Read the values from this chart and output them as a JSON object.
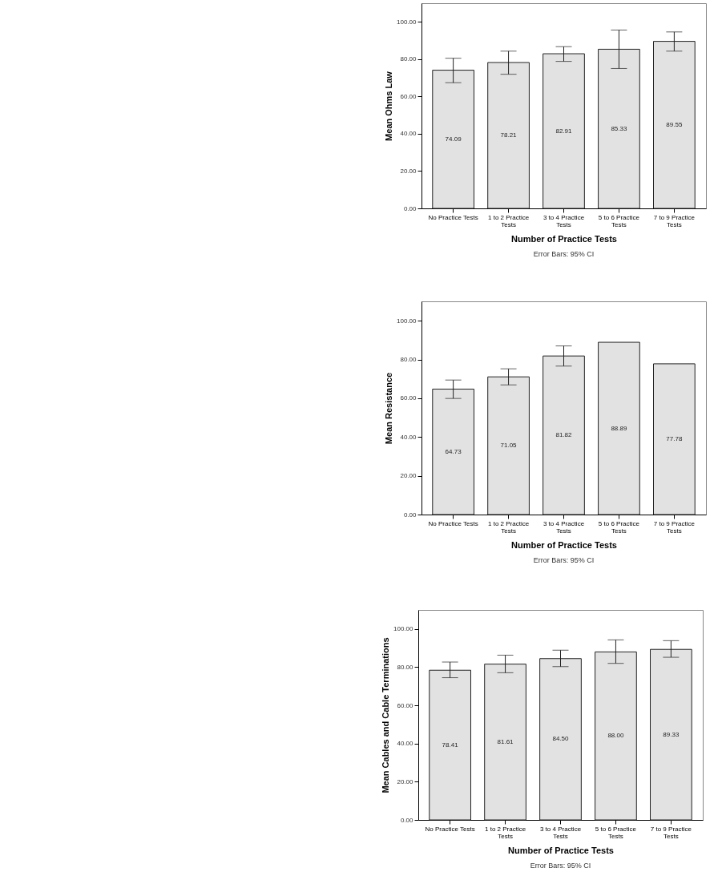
{
  "chart_data": [
    {
      "type": "bar",
      "xlabel": "Number of Practice Tests",
      "ylabel": "Mean Ohms Law",
      "annotations": [
        "Error Bars: 95% CI"
      ],
      "categories": [
        "No Practice Tests",
        "1 to 2 Practice Tests",
        "3 to 4 Practice Tests",
        "5 to 6 Practice Tests",
        "7 to 9 Practice Tests"
      ],
      "series": [
        {
          "color": "#e2e2e2",
          "values": [
            74.09,
            78.21,
            82.91,
            85.33,
            89.55
          ],
          "value_labels": [
            "74.09",
            "78.21",
            "82.91",
            "85.33",
            "89.55"
          ],
          "errors": [
            [
              67.4,
              80.5
            ],
            [
              71.9,
              84.3
            ],
            [
              78.8,
              86.7
            ],
            [
              75.0,
              95.6
            ],
            [
              84.3,
              94.6
            ]
          ]
        }
      ],
      "ylim": [
        0,
        110
      ],
      "yticks": [
        {
          "value": 0,
          "label": "0.00"
        },
        {
          "value": 20,
          "label": "20.00"
        },
        {
          "value": 40,
          "label": "40.00"
        },
        {
          "value": 60,
          "label": "60.00"
        },
        {
          "value": 80,
          "label": "80.00"
        },
        {
          "value": 100,
          "label": "100.00"
        }
      ]
    },
    {
      "type": "bar",
      "xlabel": "Number of Practice Tests",
      "ylabel": "Mean Resistance",
      "annotations": [
        "Error Bars: 95% CI"
      ],
      "categories": [
        "No Practice Tests",
        "1 to 2 Practice Tests",
        "3 to 4 Practice Tests",
        "5 to 6 Practice Tests",
        "7 to 9 Practice Tests"
      ],
      "series": [
        {
          "color": "#e2e2e2",
          "values": [
            64.73,
            71.05,
            81.82,
            88.89,
            77.78
          ],
          "value_labels": [
            "64.73",
            "71.05",
            "81.82",
            "88.89",
            "77.78"
          ],
          "errors": [
            [
              59.9,
              69.4
            ],
            [
              66.9,
              75.2
            ],
            [
              76.6,
              87.0
            ],
            null,
            null
          ]
        }
      ],
      "ylim": [
        0,
        110
      ],
      "yticks": [
        {
          "value": 0,
          "label": "0.00"
        },
        {
          "value": 20,
          "label": "20.00"
        },
        {
          "value": 40,
          "label": "40.00"
        },
        {
          "value": 60,
          "label": "60.00"
        },
        {
          "value": 80,
          "label": "80.00"
        },
        {
          "value": 100,
          "label": "100.00"
        }
      ]
    },
    {
      "type": "bar",
      "xlabel": "Number of Practice Tests",
      "ylabel": "Mean Cables and Cable Terminations",
      "annotations": [
        "Error Bars: 95% CI"
      ],
      "categories": [
        "No Practice Tests",
        "1 to 2 Practice Tests",
        "3 to 4 Practice Tests",
        "5 to 6 Practice Tests",
        "7 to 9 Practice Tests"
      ],
      "series": [
        {
          "color": "#e2e2e2",
          "values": [
            78.41,
            81.61,
            84.5,
            88.0,
            89.33
          ],
          "value_labels": [
            "78.41",
            "81.61",
            "84.50",
            "88.00",
            "89.33"
          ],
          "errors": [
            [
              74.5,
              82.7
            ],
            [
              77.1,
              86.3
            ],
            [
              80.3,
              88.9
            ],
            [
              82.0,
              94.3
            ],
            [
              85.2,
              93.9
            ]
          ]
        }
      ],
      "ylim": [
        0,
        110
      ],
      "yticks": [
        {
          "value": 0,
          "label": "0.00"
        },
        {
          "value": 20,
          "label": "20.00"
        },
        {
          "value": 40,
          "label": "40.00"
        },
        {
          "value": 60,
          "label": "60.00"
        },
        {
          "value": 80,
          "label": "80.00"
        },
        {
          "value": 100,
          "label": "100.00"
        }
      ]
    }
  ]
}
